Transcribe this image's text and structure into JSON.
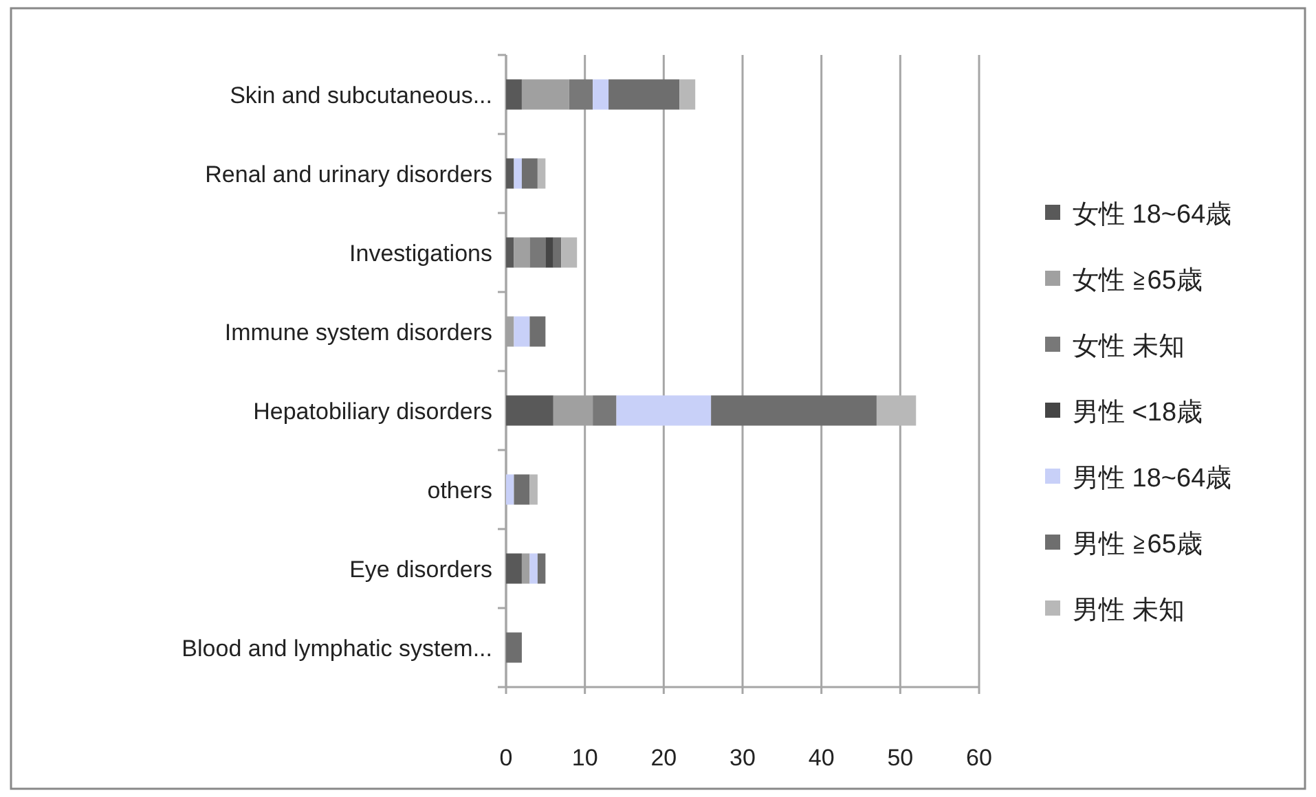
{
  "chart_data": {
    "type": "bar",
    "orientation": "horizontal",
    "stacked": true,
    "categories": [
      "Skin and subcutaneous...",
      "Renal and urinary disorders",
      "Investigations",
      "Immune system disorders",
      "Hepatobiliary disorders",
      "others",
      "Eye disorders",
      "Blood and lymphatic system..."
    ],
    "series": [
      {
        "name": "女性 18~64歳",
        "color": "#595959",
        "values": [
          2,
          1,
          1,
          0,
          6,
          0,
          2,
          0
        ]
      },
      {
        "name": "女性 ≧65歳",
        "color": "#a0a0a0",
        "values": [
          6,
          0,
          2,
          1,
          5,
          0,
          1,
          0
        ]
      },
      {
        "name": "女性 未知",
        "color": "#787878",
        "values": [
          3,
          0,
          2,
          0,
          3,
          0,
          0,
          0
        ]
      },
      {
        "name": "男性 <18歳",
        "color": "#454545",
        "values": [
          0,
          0,
          1,
          0,
          0,
          0,
          0,
          0
        ]
      },
      {
        "name": "男性 18~64歳",
        "color": "#c8d0f8",
        "values": [
          2,
          1,
          0,
          2,
          12,
          1,
          1,
          0
        ]
      },
      {
        "name": "男性 ≧65歳",
        "color": "#6e6e6e",
        "values": [
          9,
          2,
          1,
          2,
          21,
          2,
          1,
          2
        ]
      },
      {
        "name": "男性 未知",
        "color": "#b8b8b8",
        "values": [
          2,
          1,
          2,
          0,
          5,
          1,
          0,
          0
        ]
      }
    ],
    "xlim": [
      0,
      60
    ],
    "xticks": [
      0,
      10,
      20,
      30,
      40,
      50,
      60
    ],
    "grid": "x",
    "legend": "right"
  }
}
